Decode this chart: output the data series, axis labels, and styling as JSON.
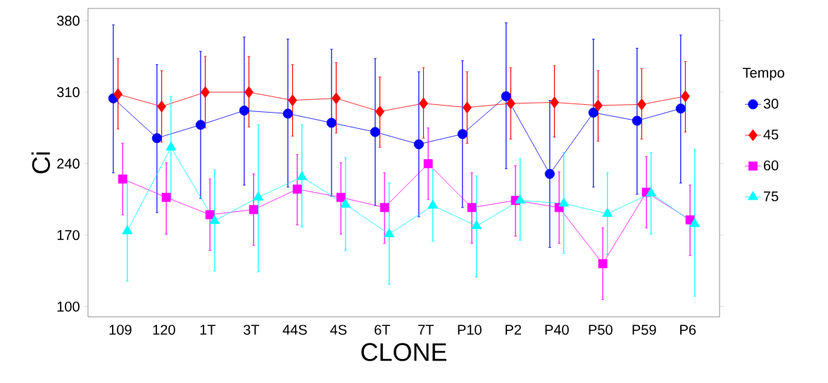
{
  "chart_data": {
    "type": "line",
    "xlabel": "CLONE",
    "ylabel": "Ci",
    "legend_title": "Tempo",
    "legend": "right",
    "categories": [
      "109",
      "120",
      "1T",
      "3T",
      "44S",
      "4S",
      "6T",
      "7T",
      "P10",
      "P2",
      "P40",
      "P50",
      "P59",
      "P6"
    ],
    "ylim": [
      90,
      392
    ],
    "yticks": [
      100,
      170,
      240,
      310,
      380
    ],
    "series": [
      {
        "name": "30",
        "color": "#0000ff",
        "marker": "circle",
        "values": [
          304,
          265,
          278,
          292,
          289,
          280,
          271,
          259,
          269,
          306,
          230,
          290,
          282,
          294
        ],
        "errors": [
          [
            231,
            376
          ],
          [
            192,
            337
          ],
          [
            206,
            350
          ],
          [
            219,
            364
          ],
          [
            217,
            362
          ],
          [
            208,
            352
          ],
          [
            199,
            343
          ],
          [
            188,
            330
          ],
          [
            197,
            341
          ],
          [
            235,
            378
          ],
          [
            158,
            302
          ],
          [
            217,
            362
          ],
          [
            210,
            353
          ],
          [
            221,
            366
          ]
        ]
      },
      {
        "name": "45",
        "color": "#ff0000",
        "marker": "diamond",
        "values": [
          308,
          296,
          310,
          310,
          302,
          304,
          291,
          299,
          295,
          299,
          300,
          297,
          298,
          306
        ],
        "errors": [
          [
            274,
            343
          ],
          [
            261,
            331
          ],
          [
            275,
            345
          ],
          [
            276,
            345
          ],
          [
            267,
            337
          ],
          [
            270,
            339
          ],
          [
            256,
            325
          ],
          [
            265,
            334
          ],
          [
            260,
            330
          ],
          [
            264,
            334
          ],
          [
            266,
            336
          ],
          [
            262,
            331
          ],
          [
            264,
            333
          ],
          [
            271,
            340
          ]
        ]
      },
      {
        "name": "60",
        "color": "#ff00ff",
        "marker": "square",
        "values": [
          225,
          207,
          190,
          195,
          215,
          207,
          197,
          240,
          197,
          204,
          197,
          142,
          212,
          185
        ],
        "errors": [
          [
            190,
            260
          ],
          [
            171,
            241
          ],
          [
            155,
            225
          ],
          [
            160,
            230
          ],
          [
            180,
            249
          ],
          [
            171,
            241
          ],
          [
            162,
            231
          ],
          [
            205,
            275
          ],
          [
            162,
            231
          ],
          [
            169,
            238
          ],
          [
            162,
            232
          ],
          [
            107,
            177
          ],
          [
            177,
            247
          ],
          [
            150,
            219
          ]
        ]
      },
      {
        "name": "75",
        "color": "#00ffff",
        "marker": "triangle",
        "values": [
          174,
          256,
          184,
          207,
          227,
          200,
          171,
          199,
          179,
          204,
          201,
          191,
          211,
          181
        ],
        "errors": [
          [
            125,
            223
          ],
          [
            206,
            306
          ],
          [
            135,
            234
          ],
          [
            134,
            278
          ],
          [
            178,
            278
          ],
          [
            155,
            246
          ],
          [
            122,
            221
          ],
          [
            164,
            234
          ],
          [
            129,
            228
          ],
          [
            165,
            245
          ],
          [
            152,
            251
          ],
          [
            151,
            231
          ],
          [
            171,
            251
          ],
          [
            110,
            254
          ]
        ]
      }
    ]
  }
}
